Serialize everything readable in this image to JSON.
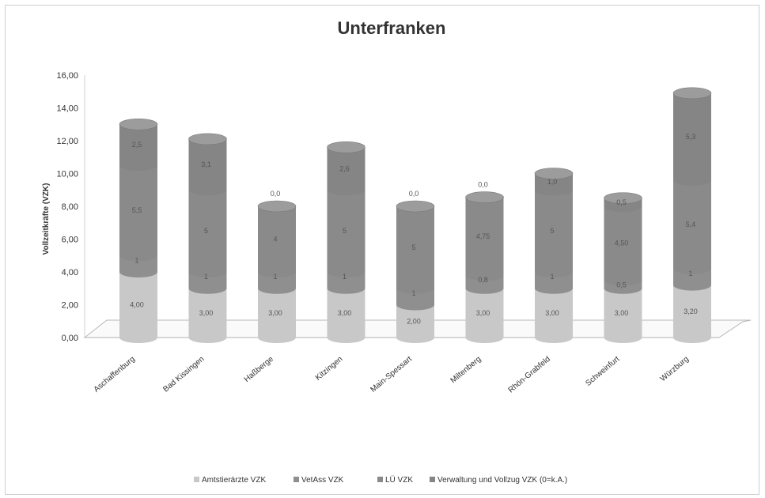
{
  "chart_data": {
    "type": "bar",
    "subtype": "stacked-3d-cylinder",
    "title": "Unterfranken",
    "ylabel": "Vollzeitkräfte (VZK)",
    "xlabel": "",
    "ylim": [
      0,
      16
    ],
    "y_ticks": [
      "0,00",
      "2,00",
      "4,00",
      "6,00",
      "8,00",
      "10,00",
      "12,00",
      "14,00",
      "16,00"
    ],
    "categories": [
      "Aschaffenburg",
      "Bad Kissingen",
      "Haßberge",
      "Kitzingen",
      "Main-Spessart",
      "Miltenberg",
      "Rhön-Grabfeld",
      "Schweinfurt",
      "Würzburg"
    ],
    "series": [
      {
        "name": "Amtstierärzte VZK",
        "color": "#c8c8c8",
        "values": [
          4,
          3,
          3,
          3,
          2,
          3,
          3,
          3,
          3.2
        ],
        "labels": [
          "4,00",
          "3,00",
          "3,00",
          "3,00",
          "2,00",
          "3,00",
          "3,00",
          "3,00",
          "3,20"
        ]
      },
      {
        "name": "VetAss VZK",
        "color": "#8f8f8f",
        "values": [
          1,
          1,
          1,
          1,
          1,
          0.8,
          1,
          0.5,
          1
        ],
        "labels": [
          "1",
          "1",
          "1",
          "1",
          "1",
          "0,8",
          "1",
          "0,5",
          "1"
        ]
      },
      {
        "name": "LÜ VZK",
        "color": "#8a8a8a",
        "values": [
          5.5,
          5,
          4,
          5,
          5,
          4.75,
          5,
          4.5,
          5.4
        ],
        "labels": [
          "5,5",
          "5",
          "4",
          "5",
          "5",
          "4,75",
          "5",
          "4,50",
          "5,4"
        ]
      },
      {
        "name": "Verwaltung und Vollzug VZK (0=k.A.)",
        "color": "#858585",
        "values": [
          2.5,
          3.1,
          0,
          2.6,
          0,
          0,
          1,
          0.5,
          5.3
        ],
        "labels": [
          "2,5",
          "3,1",
          "0,0",
          "2,6",
          "0,0",
          "0,0",
          "1,0",
          "0,5",
          "5,3"
        ]
      }
    ],
    "legend_position": "bottom",
    "grid": false
  }
}
